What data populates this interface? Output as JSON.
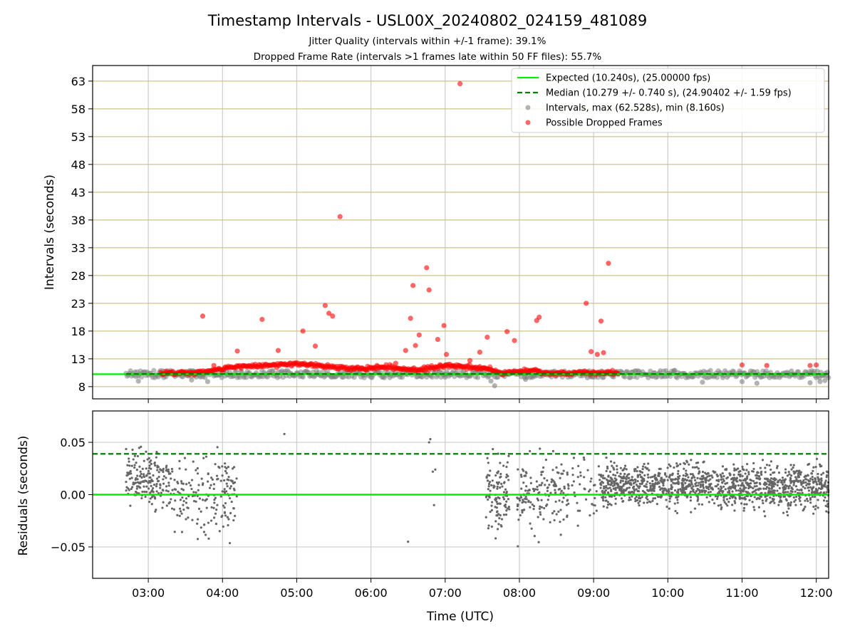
{
  "figure": {
    "title": "Timestamp Intervals - USL00X_20240802_024159_481089",
    "subtitle_1": "Jitter Quality (intervals within +/-1 frame): 39.1%",
    "subtitle_2": "Dropped Frame Rate (intervals >1 frames late within 50 FF files): 55.7%"
  },
  "colors": {
    "expected": "#00ee00",
    "median": "#008000",
    "intervals": "#808080",
    "dropped": "#ff0000",
    "upper_grid": "#d4c08a",
    "grid": "#cccccc"
  },
  "chart_data": [
    {
      "type": "scatter",
      "ylabel": "Intervals (seconds)",
      "ylim": [
        5.8,
        65.8
      ],
      "xlim": [
        "02:15",
        "12:10"
      ],
      "yticks": [
        "63",
        "58",
        "53",
        "48",
        "43",
        "38",
        "33",
        "28",
        "23",
        "18",
        "13",
        "8"
      ],
      "grid": true,
      "legend_position": "top-right",
      "legend": {
        "expected": "Expected (10.240s), (25.00000 fps)",
        "median": "Median (10.279 +/- 0.740 s), (24.90402 +/- 1.59 fps)",
        "intervals": "Intervals, max (62.528s), min (8.160s)",
        "dropped": "Possible Dropped Frames"
      },
      "reference_lines": {
        "expected": 10.24,
        "median": 10.279
      },
      "series": [
        {
          "name": "Intervals, max (62.528s), min (8.160s)",
          "band": {
            "x": [
              "02:42",
              "12:10"
            ],
            "y": [
              9.6,
              10.9
            ]
          },
          "points": [
            [
              "02:52",
              9.0
            ],
            [
              "03:35",
              9.2
            ],
            [
              "03:48",
              8.9
            ],
            [
              "07:00",
              9.7
            ],
            [
              "07:40",
              8.16
            ],
            [
              "07:37",
              9.0
            ],
            [
              "08:05",
              9.3
            ],
            [
              "08:55",
              9.6
            ],
            [
              "10:28",
              8.8
            ],
            [
              "11:00",
              8.9
            ],
            [
              "11:12",
              8.6
            ],
            [
              "11:55",
              8.7
            ],
            [
              "12:03",
              8.9
            ],
            [
              "12:07",
              9.1
            ],
            [
              "10:05",
              10.9
            ],
            [
              "11:40",
              10.8
            ]
          ]
        },
        {
          "name": "Possible Dropped Frames",
          "band": [
            [
              "03:10",
              10.4
            ],
            [
              "03:45",
              10.6
            ],
            [
              "04:10",
              11.6
            ],
            [
              "04:40",
              11.9
            ],
            [
              "05:00",
              12.1
            ],
            [
              "05:25",
              11.6
            ],
            [
              "05:45",
              11.3
            ],
            [
              "06:15",
              11.5
            ],
            [
              "06:40",
              11.0
            ],
            [
              "07:00",
              11.9
            ],
            [
              "07:35",
              11.2
            ],
            [
              "07:45",
              10.4
            ],
            [
              "08:10",
              10.9
            ],
            [
              "08:25",
              10.2
            ],
            [
              "08:55",
              10.6
            ],
            [
              "09:20",
              10.4
            ]
          ],
          "points": [
            [
              "03:44",
              20.7
            ],
            [
              "04:32",
              20.1
            ],
            [
              "05:05",
              18.0
            ],
            [
              "05:15",
              15.3
            ],
            [
              "05:23",
              22.6
            ],
            [
              "05:26",
              21.2
            ],
            [
              "05:29",
              20.7
            ],
            [
              "05:35",
              38.6
            ],
            [
              "06:28",
              14.5
            ],
            [
              "06:32",
              20.3
            ],
            [
              "06:34",
              26.2
            ],
            [
              "06:36",
              15.4
            ],
            [
              "06:39",
              17.3
            ],
            [
              "06:45",
              29.4
            ],
            [
              "06:47",
              25.4
            ],
            [
              "06:54",
              16.5
            ],
            [
              "06:59",
              19.0
            ],
            [
              "07:01",
              13.8
            ],
            [
              "07:12",
              62.528
            ],
            [
              "07:28",
              14.2
            ],
            [
              "07:34",
              16.9
            ],
            [
              "07:50",
              17.9
            ],
            [
              "07:56",
              16.3
            ],
            [
              "08:14",
              19.9
            ],
            [
              "08:16",
              20.5
            ],
            [
              "08:54",
              23.0
            ],
            [
              "08:58",
              14.3
            ],
            [
              "09:03",
              13.8
            ],
            [
              "09:06",
              19.8
            ],
            [
              "09:08",
              14.1
            ],
            [
              "09:12",
              30.2
            ],
            [
              "04:12",
              14.4
            ],
            [
              "04:45",
              14.5
            ],
            [
              "03:53",
              11.8
            ],
            [
              "11:00",
              11.9
            ],
            [
              "11:20",
              11.8
            ],
            [
              "11:55",
              11.8
            ],
            [
              "12:00",
              11.9
            ],
            [
              "06:20",
              12.2
            ],
            [
              "07:20",
              12.7
            ]
          ]
        }
      ]
    },
    {
      "type": "scatter",
      "ylabel": "Residuals (seconds)",
      "xlabel": "Time (UTC)",
      "ylim": [
        -0.08,
        0.08
      ],
      "xlim": [
        "02:15",
        "12:10"
      ],
      "yticks": [
        "0.05",
        "0.00",
        "−0.05"
      ],
      "xticks": [
        "03:00",
        "04:00",
        "05:00",
        "06:00",
        "07:00",
        "08:00",
        "09:00",
        "10:00",
        "11:00",
        "12:00"
      ],
      "grid": true,
      "reference_lines": {
        "expected": 0.0,
        "median": 0.039
      },
      "series": [
        {
          "name": "",
          "clusters": [
            {
              "x": [
                "02:42",
                "03:15"
              ],
              "density": 170,
              "bias": 0.015,
              "spread": 0.028
            },
            {
              "x": [
                "03:15",
                "04:12"
              ],
              "density": 190,
              "bias": 0.0,
              "spread": 0.04
            },
            {
              "x": [
                "07:33",
                "07:52"
              ],
              "density": 110,
              "bias": 0.0,
              "spread": 0.035
            },
            {
              "x": [
                "07:58",
                "08:40"
              ],
              "density": 160,
              "bias": 0.0,
              "spread": 0.04
            },
            {
              "x": [
                "08:42",
                "09:05"
              ],
              "density": 40,
              "bias": 0.0,
              "spread": 0.04
            },
            {
              "x": [
                "09:05",
                "10:00"
              ],
              "density": 380,
              "bias": 0.008,
              "spread": 0.02
            },
            {
              "x": [
                "10:00",
                "12:10"
              ],
              "density": 900,
              "bias": 0.008,
              "spread": 0.022
            }
          ],
          "points": [
            [
              "06:47",
              0.05
            ],
            [
              "06:48",
              0.053
            ],
            [
              "06:50",
              0.022
            ],
            [
              "06:51",
              -0.01
            ],
            [
              "06:52",
              0.024
            ],
            [
              "06:30",
              -0.045
            ],
            [
              "04:50",
              0.058
            ]
          ]
        }
      ]
    }
  ]
}
